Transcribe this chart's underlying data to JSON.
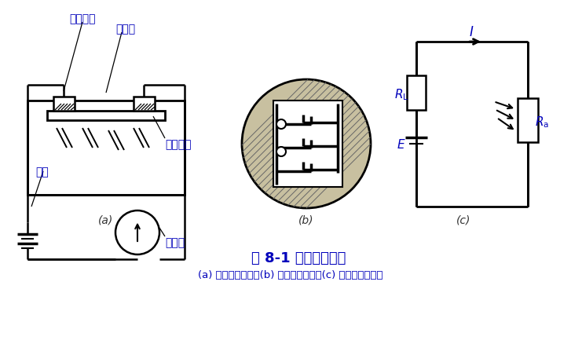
{
  "title": "图 8-1 光敏电阻结构",
  "subtitle": "(a) 光敏电阻结构；(b) 光敏电阻电极；(c) 光敏电阻接线图",
  "label_a": "(a)",
  "label_b": "(b)",
  "label_c": "(c)",
  "bg_color": "#ffffff",
  "line_color": "#000000",
  "annotation_color": "#0000bb",
  "title_color": "#0000bb",
  "text_jin_shu": "金属电极",
  "text_ban_dao": "半导体",
  "text_dian_yuan": "电源",
  "text_bo_li": "玻璃底板",
  "text_jian_liu": "检流计"
}
